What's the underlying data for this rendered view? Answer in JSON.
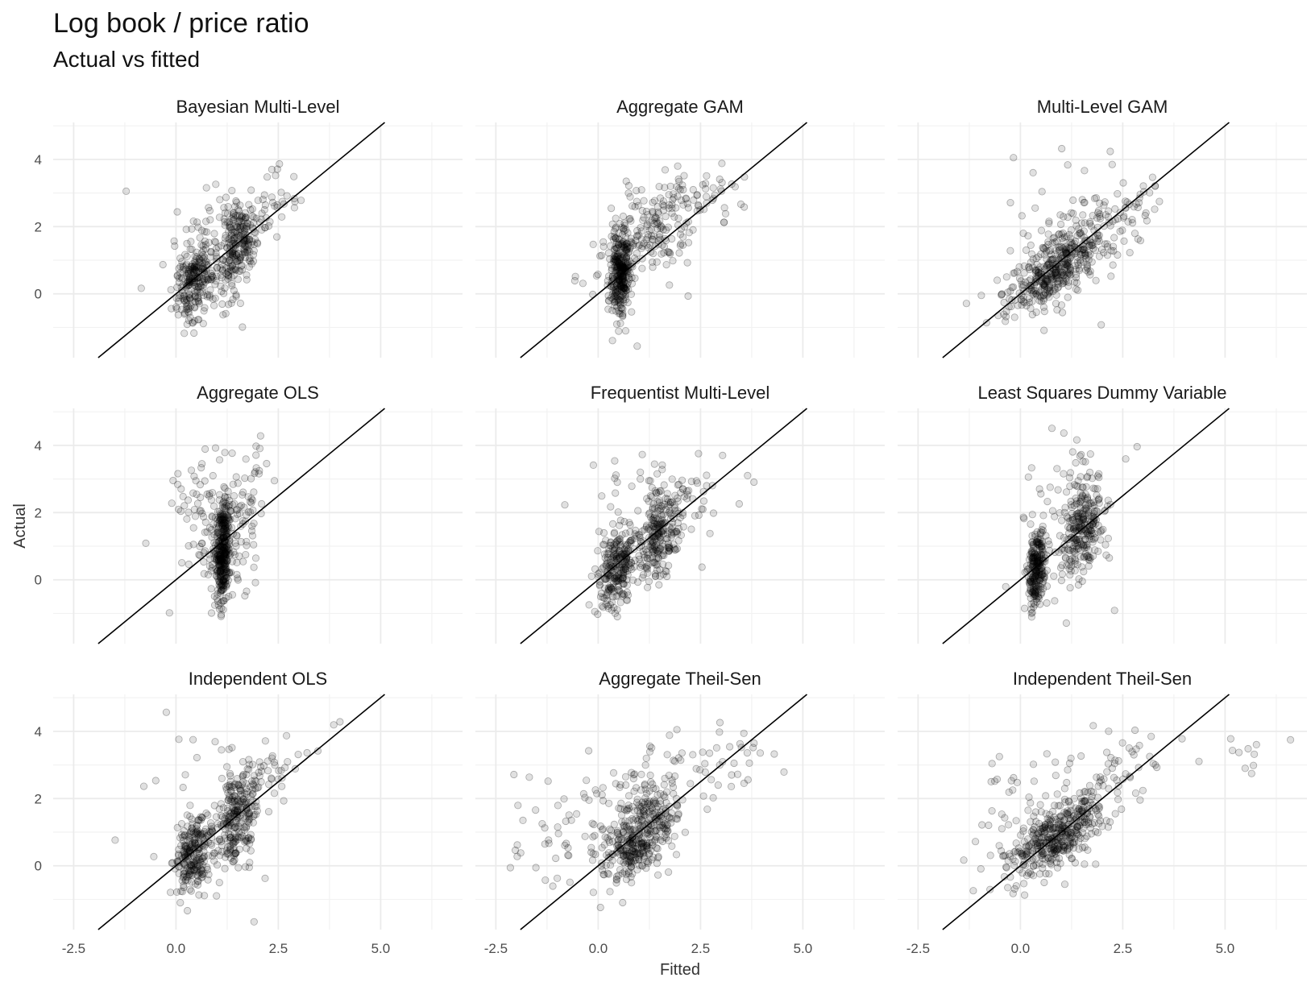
{
  "chart_data": {
    "type": "scatter",
    "title": "Log book / price ratio",
    "subtitle": "Actual vs fitted",
    "xlabel": "Fitted",
    "ylabel": "Actual",
    "xlim": [
      -3,
      7
    ],
    "ylim": [
      -1.9,
      5.1
    ],
    "x_ticks": [
      -2.5,
      0.0,
      2.5,
      5.0
    ],
    "x_tick_labels": [
      "-2.5",
      "0.0",
      "2.5",
      "5.0"
    ],
    "y_ticks": [
      0,
      2,
      4
    ],
    "y_tick_labels": [
      "0",
      "2",
      "4"
    ],
    "grid": true,
    "reference_line": "y = x",
    "point_color": "#000000",
    "line_color": "#000000",
    "grid_color": "#ebebeb",
    "panels": [
      {
        "name": "Bayesian Multi-Level",
        "clusters": [
          {
            "cx": 0.45,
            "cy": 0.35,
            "sx": 0.22,
            "sy": 0.55,
            "n": 240,
            "rho": 0.3
          },
          {
            "cx": 1.45,
            "cy": 1.4,
            "sx": 0.25,
            "sy": 0.7,
            "n": 240,
            "rho": 0.3
          },
          {
            "cx": 2.0,
            "cy": 2.4,
            "sx": 0.6,
            "sy": 0.6,
            "n": 40,
            "rho": 0.6
          },
          {
            "cx": 0.9,
            "cy": 1.6,
            "sx": 0.8,
            "sy": 1.3,
            "n": 40,
            "rho": 0.0
          }
        ]
      },
      {
        "name": "Aggregate GAM",
        "clusters": [
          {
            "cx": 0.55,
            "cy": 0.6,
            "sx": 0.12,
            "sy": 0.6,
            "n": 300,
            "rho": 0.2
          },
          {
            "cx": 1.3,
            "cy": 1.8,
            "sx": 0.6,
            "sy": 0.75,
            "n": 180,
            "rho": 0.5
          },
          {
            "cx": 2.9,
            "cy": 3.0,
            "sx": 0.5,
            "sy": 0.45,
            "n": 25,
            "rho": 0.3
          },
          {
            "cx": 1.2,
            "cy": 1.8,
            "sx": 0.7,
            "sy": 1.3,
            "n": 40,
            "rho": 0.0
          }
        ]
      },
      {
        "name": "Multi-Level GAM",
        "clusters": [
          {
            "cx": 0.85,
            "cy": 0.75,
            "sx": 0.6,
            "sy": 0.65,
            "n": 420,
            "rho": 0.65
          },
          {
            "cx": 2.3,
            "cy": 2.4,
            "sx": 0.7,
            "sy": 0.6,
            "n": 60,
            "rho": 0.5
          },
          {
            "cx": 1.2,
            "cy": 1.8,
            "sx": 0.9,
            "sy": 1.3,
            "n": 40,
            "rho": 0.0
          }
        ]
      },
      {
        "name": "Aggregate OLS",
        "clusters": [
          {
            "cx": 1.15,
            "cy": 0.8,
            "sx": 0.08,
            "sy": 0.75,
            "n": 320,
            "rho": 0.1
          },
          {
            "cx": 1.7,
            "cy": 2.4,
            "sx": 0.35,
            "sy": 0.9,
            "n": 60,
            "rho": 0.2
          },
          {
            "cx": 0.5,
            "cy": 1.8,
            "sx": 0.45,
            "sy": 1.4,
            "n": 60,
            "rho": 0.0
          },
          {
            "cx": 1.2,
            "cy": 1.0,
            "sx": 0.35,
            "sy": 0.7,
            "n": 80,
            "rho": 0.0
          }
        ]
      },
      {
        "name": "Frequentist Multi-Level",
        "clusters": [
          {
            "cx": 0.45,
            "cy": 0.35,
            "sx": 0.22,
            "sy": 0.55,
            "n": 240,
            "rho": 0.3
          },
          {
            "cx": 1.5,
            "cy": 1.4,
            "sx": 0.25,
            "sy": 0.7,
            "n": 240,
            "rho": 0.3
          },
          {
            "cx": 2.2,
            "cy": 2.5,
            "sx": 0.6,
            "sy": 0.6,
            "n": 40,
            "rho": 0.6
          },
          {
            "cx": 1.0,
            "cy": 1.6,
            "sx": 0.8,
            "sy": 1.3,
            "n": 40,
            "rho": 0.0
          }
        ]
      },
      {
        "name": "Least Squares Dummy Variable",
        "clusters": [
          {
            "cx": 0.4,
            "cy": 0.35,
            "sx": 0.1,
            "sy": 0.55,
            "n": 240,
            "rho": 0.2
          },
          {
            "cx": 1.5,
            "cy": 1.4,
            "sx": 0.25,
            "sy": 0.7,
            "n": 240,
            "rho": 0.3
          },
          {
            "cx": 1.6,
            "cy": 2.8,
            "sx": 0.4,
            "sy": 0.5,
            "n": 30,
            "rho": 0.3
          },
          {
            "cx": 0.9,
            "cy": 1.8,
            "sx": 0.7,
            "sy": 1.3,
            "n": 40,
            "rho": 0.0
          }
        ]
      },
      {
        "name": "Independent OLS",
        "clusters": [
          {
            "cx": 0.45,
            "cy": 0.35,
            "sx": 0.25,
            "sy": 0.55,
            "n": 240,
            "rho": 0.3
          },
          {
            "cx": 1.5,
            "cy": 1.4,
            "sx": 0.25,
            "sy": 0.7,
            "n": 240,
            "rho": 0.3
          },
          {
            "cx": 2.3,
            "cy": 2.7,
            "sx": 0.6,
            "sy": 0.6,
            "n": 40,
            "rho": 0.6
          },
          {
            "cx": 1.0,
            "cy": 1.8,
            "sx": 0.8,
            "sy": 1.3,
            "n": 40,
            "rho": 0.0
          }
        ]
      },
      {
        "name": "Aggregate Theil-Sen",
        "clusters": [
          {
            "cx": 0.95,
            "cy": 0.85,
            "sx": 0.45,
            "sy": 0.7,
            "n": 360,
            "rho": 0.55
          },
          {
            "cx": 1.6,
            "cy": 2.2,
            "sx": 0.8,
            "sy": 0.9,
            "n": 80,
            "rho": 0.4
          },
          {
            "cx": -0.5,
            "cy": 1.3,
            "sx": 0.9,
            "sy": 1.0,
            "n": 60,
            "rho": 0.3
          },
          {
            "cx": 3.3,
            "cy": 3.1,
            "sx": 0.5,
            "sy": 0.5,
            "n": 20,
            "rho": 0.3
          }
        ]
      },
      {
        "name": "Independent Theil-Sen",
        "clusters": [
          {
            "cx": 0.85,
            "cy": 0.85,
            "sx": 0.6,
            "sy": 0.6,
            "n": 400,
            "rho": 0.65
          },
          {
            "cx": 2.2,
            "cy": 2.5,
            "sx": 0.9,
            "sy": 0.7,
            "n": 60,
            "rho": 0.5
          },
          {
            "cx": 0.2,
            "cy": 1.6,
            "sx": 1.0,
            "sy": 1.2,
            "n": 50,
            "rho": 0.1
          },
          {
            "cx": 5.4,
            "cy": 3.4,
            "sx": 0.7,
            "sy": 0.35,
            "n": 10,
            "rho": 0.0
          }
        ]
      }
    ]
  }
}
